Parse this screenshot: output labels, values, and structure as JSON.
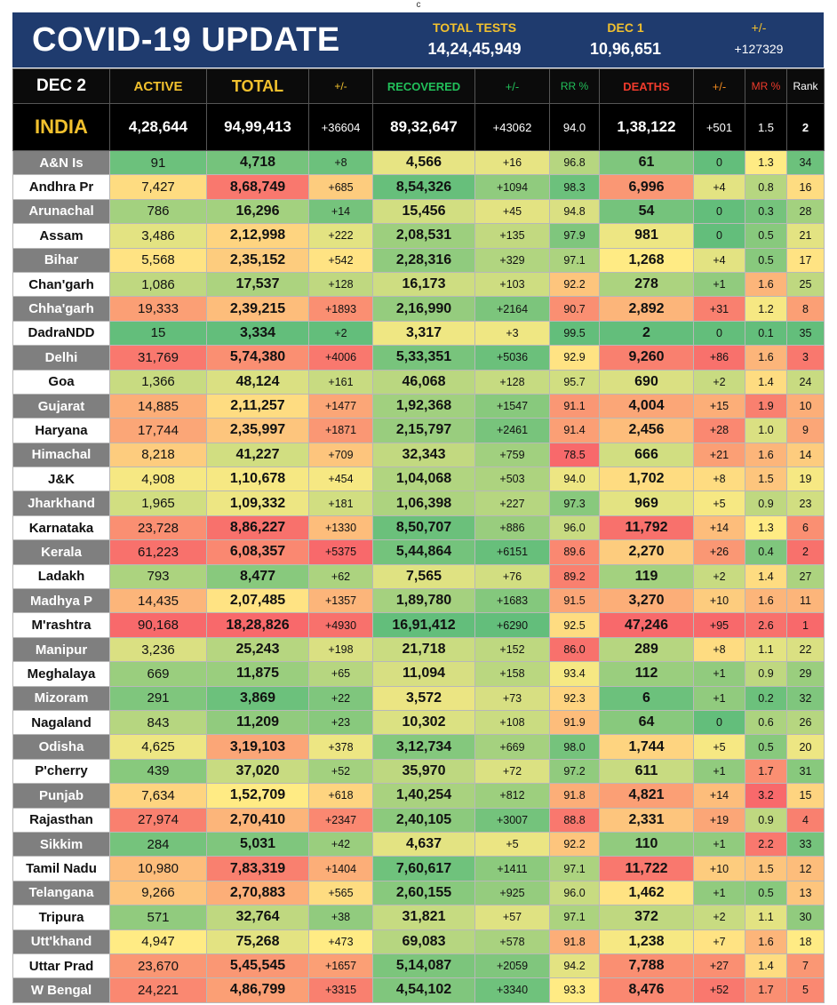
{
  "top_mark": "c",
  "banner": {
    "title": "COVID-19 UPDATE",
    "tests_label": "TOTAL TESTS",
    "tests_value": "14,24,45,949",
    "date_label": "DEC 1",
    "date_value": "10,96,651",
    "delta_label": "+/-",
    "delta_value": "+127329"
  },
  "header": {
    "date": "DEC 2",
    "active": "ACTIVE",
    "total": "TOTAL",
    "total_delta": "+/-",
    "recovered": "RECOVERED",
    "recovered_delta": "+/-",
    "rr": "RR %",
    "deaths": "DEATHS",
    "deaths_delta": "+/-",
    "mr": "MR %",
    "rank": "Rank"
  },
  "india": {
    "name": "INDIA",
    "active": "4,28,644",
    "total": "94,99,413",
    "total_delta": "+36604",
    "recovered": "89,32,647",
    "recovered_delta": "+43062",
    "rr": "94.0",
    "deaths": "1,38,122",
    "deaths_delta": "+501",
    "mr": "1.5",
    "rank": "2"
  },
  "rows": [
    {
      "name": "A&N Is",
      "active": "91",
      "total": "4,718",
      "total_delta": "+8",
      "recovered": "4,566",
      "recovered_delta": "+16",
      "rr": "96.8",
      "deaths": "61",
      "deaths_delta": "0",
      "mr": "1.3",
      "rank": "34"
    },
    {
      "name": "Andhra Pr",
      "active": "7,427",
      "total": "8,68,749",
      "total_delta": "+685",
      "recovered": "8,54,326",
      "recovered_delta": "+1094",
      "rr": "98.3",
      "deaths": "6,996",
      "deaths_delta": "+4",
      "mr": "0.8",
      "rank": "16"
    },
    {
      "name": "Arunachal",
      "active": "786",
      "total": "16,296",
      "total_delta": "+14",
      "recovered": "15,456",
      "recovered_delta": "+45",
      "rr": "94.8",
      "deaths": "54",
      "deaths_delta": "0",
      "mr": "0.3",
      "rank": "28"
    },
    {
      "name": "Assam",
      "active": "3,486",
      "total": "2,12,998",
      "total_delta": "+222",
      "recovered": "2,08,531",
      "recovered_delta": "+135",
      "rr": "97.9",
      "deaths": "981",
      "deaths_delta": "0",
      "mr": "0.5",
      "rank": "21"
    },
    {
      "name": "Bihar",
      "active": "5,568",
      "total": "2,35,152",
      "total_delta": "+542",
      "recovered": "2,28,316",
      "recovered_delta": "+329",
      "rr": "97.1",
      "deaths": "1,268",
      "deaths_delta": "+4",
      "mr": "0.5",
      "rank": "17"
    },
    {
      "name": "Chan'garh",
      "active": "1,086",
      "total": "17,537",
      "total_delta": "+128",
      "recovered": "16,173",
      "recovered_delta": "+103",
      "rr": "92.2",
      "deaths": "278",
      "deaths_delta": "+1",
      "mr": "1.6",
      "rank": "25"
    },
    {
      "name": "Chha'garh",
      "active": "19,333",
      "total": "2,39,215",
      "total_delta": "+1893",
      "recovered": "2,16,990",
      "recovered_delta": "+2164",
      "rr": "90.7",
      "deaths": "2,892",
      "deaths_delta": "+31",
      "mr": "1.2",
      "rank": "8"
    },
    {
      "name": "DadraNDD",
      "active": "15",
      "total": "3,334",
      "total_delta": "+2",
      "recovered": "3,317",
      "recovered_delta": "+3",
      "rr": "99.5",
      "deaths": "2",
      "deaths_delta": "0",
      "mr": "0.1",
      "rank": "35"
    },
    {
      "name": "Delhi",
      "active": "31,769",
      "total": "5,74,380",
      "total_delta": "+4006",
      "recovered": "5,33,351",
      "recovered_delta": "+5036",
      "rr": "92.9",
      "deaths": "9,260",
      "deaths_delta": "+86",
      "mr": "1.6",
      "rank": "3"
    },
    {
      "name": "Goa",
      "active": "1,366",
      "total": "48,124",
      "total_delta": "+161",
      "recovered": "46,068",
      "recovered_delta": "+128",
      "rr": "95.7",
      "deaths": "690",
      "deaths_delta": "+2",
      "mr": "1.4",
      "rank": "24"
    },
    {
      "name": "Gujarat",
      "active": "14,885",
      "total": "2,11,257",
      "total_delta": "+1477",
      "recovered": "1,92,368",
      "recovered_delta": "+1547",
      "rr": "91.1",
      "deaths": "4,004",
      "deaths_delta": "+15",
      "mr": "1.9",
      "rank": "10"
    },
    {
      "name": "Haryana",
      "active": "17,744",
      "total": "2,35,997",
      "total_delta": "+1871",
      "recovered": "2,15,797",
      "recovered_delta": "+2461",
      "rr": "91.4",
      "deaths": "2,456",
      "deaths_delta": "+28",
      "mr": "1.0",
      "rank": "9"
    },
    {
      "name": "Himachal",
      "active": "8,218",
      "total": "41,227",
      "total_delta": "+709",
      "recovered": "32,343",
      "recovered_delta": "+759",
      "rr": "78.5",
      "deaths": "666",
      "deaths_delta": "+21",
      "mr": "1.6",
      "rank": "14"
    },
    {
      "name": "J&K",
      "active": "4,908",
      "total": "1,10,678",
      "total_delta": "+454",
      "recovered": "1,04,068",
      "recovered_delta": "+503",
      "rr": "94.0",
      "deaths": "1,702",
      "deaths_delta": "+8",
      "mr": "1.5",
      "rank": "19"
    },
    {
      "name": "Jharkhand",
      "active": "1,965",
      "total": "1,09,332",
      "total_delta": "+181",
      "recovered": "1,06,398",
      "recovered_delta": "+227",
      "rr": "97.3",
      "deaths": "969",
      "deaths_delta": "+5",
      "mr": "0.9",
      "rank": "23"
    },
    {
      "name": "Karnataka",
      "active": "23,728",
      "total": "8,86,227",
      "total_delta": "+1330",
      "recovered": "8,50,707",
      "recovered_delta": "+886",
      "rr": "96.0",
      "deaths": "11,792",
      "deaths_delta": "+14",
      "mr": "1.3",
      "rank": "6"
    },
    {
      "name": "Kerala",
      "active": "61,223",
      "total": "6,08,357",
      "total_delta": "+5375",
      "recovered": "5,44,864",
      "recovered_delta": "+6151",
      "rr": "89.6",
      "deaths": "2,270",
      "deaths_delta": "+26",
      "mr": "0.4",
      "rank": "2"
    },
    {
      "name": "Ladakh",
      "active": "793",
      "total": "8,477",
      "total_delta": "+62",
      "recovered": "7,565",
      "recovered_delta": "+76",
      "rr": "89.2",
      "deaths": "119",
      "deaths_delta": "+2",
      "mr": "1.4",
      "rank": "27"
    },
    {
      "name": "Madhya P",
      "active": "14,435",
      "total": "2,07,485",
      "total_delta": "+1357",
      "recovered": "1,89,780",
      "recovered_delta": "+1683",
      "rr": "91.5",
      "deaths": "3,270",
      "deaths_delta": "+10",
      "mr": "1.6",
      "rank": "11"
    },
    {
      "name": "M'rashtra",
      "active": "90,168",
      "total": "18,28,826",
      "total_delta": "+4930",
      "recovered": "16,91,412",
      "recovered_delta": "+6290",
      "rr": "92.5",
      "deaths": "47,246",
      "deaths_delta": "+95",
      "mr": "2.6",
      "rank": "1"
    },
    {
      "name": "Manipur",
      "active": "3,236",
      "total": "25,243",
      "total_delta": "+198",
      "recovered": "21,718",
      "recovered_delta": "+152",
      "rr": "86.0",
      "deaths": "289",
      "deaths_delta": "+8",
      "mr": "1.1",
      "rank": "22"
    },
    {
      "name": "Meghalaya",
      "active": "669",
      "total": "11,875",
      "total_delta": "+65",
      "recovered": "11,094",
      "recovered_delta": "+158",
      "rr": "93.4",
      "deaths": "112",
      "deaths_delta": "+1",
      "mr": "0.9",
      "rank": "29"
    },
    {
      "name": "Mizoram",
      "active": "291",
      "total": "3,869",
      "total_delta": "+22",
      "recovered": "3,572",
      "recovered_delta": "+73",
      "rr": "92.3",
      "deaths": "6",
      "deaths_delta": "+1",
      "mr": "0.2",
      "rank": "32"
    },
    {
      "name": "Nagaland",
      "active": "843",
      "total": "11,209",
      "total_delta": "+23",
      "recovered": "10,302",
      "recovered_delta": "+108",
      "rr": "91.9",
      "deaths": "64",
      "deaths_delta": "0",
      "mr": "0.6",
      "rank": "26"
    },
    {
      "name": "Odisha",
      "active": "4,625",
      "total": "3,19,103",
      "total_delta": "+378",
      "recovered": "3,12,734",
      "recovered_delta": "+669",
      "rr": "98.0",
      "deaths": "1,744",
      "deaths_delta": "+5",
      "mr": "0.5",
      "rank": "20"
    },
    {
      "name": "P'cherry",
      "active": "439",
      "total": "37,020",
      "total_delta": "+52",
      "recovered": "35,970",
      "recovered_delta": "+72",
      "rr": "97.2",
      "deaths": "611",
      "deaths_delta": "+1",
      "mr": "1.7",
      "rank": "31"
    },
    {
      "name": "Punjab",
      "active": "7,634",
      "total": "1,52,709",
      "total_delta": "+618",
      "recovered": "1,40,254",
      "recovered_delta": "+812",
      "rr": "91.8",
      "deaths": "4,821",
      "deaths_delta": "+14",
      "mr": "3.2",
      "rank": "15"
    },
    {
      "name": "Rajasthan",
      "active": "27,974",
      "total": "2,70,410",
      "total_delta": "+2347",
      "recovered": "2,40,105",
      "recovered_delta": "+3007",
      "rr": "88.8",
      "deaths": "2,331",
      "deaths_delta": "+19",
      "mr": "0.9",
      "rank": "4"
    },
    {
      "name": "Sikkim",
      "active": "284",
      "total": "5,031",
      "total_delta": "+42",
      "recovered": "4,637",
      "recovered_delta": "+5",
      "rr": "92.2",
      "deaths": "110",
      "deaths_delta": "+1",
      "mr": "2.2",
      "rank": "33"
    },
    {
      "name": "Tamil Nadu",
      "active": "10,980",
      "total": "7,83,319",
      "total_delta": "+1404",
      "recovered": "7,60,617",
      "recovered_delta": "+1411",
      "rr": "97.1",
      "deaths": "11,722",
      "deaths_delta": "+10",
      "mr": "1.5",
      "rank": "12"
    },
    {
      "name": "Telangana",
      "active": "9,266",
      "total": "2,70,883",
      "total_delta": "+565",
      "recovered": "2,60,155",
      "recovered_delta": "+925",
      "rr": "96.0",
      "deaths": "1,462",
      "deaths_delta": "+1",
      "mr": "0.5",
      "rank": "13"
    },
    {
      "name": "Tripura",
      "active": "571",
      "total": "32,764",
      "total_delta": "+38",
      "recovered": "31,821",
      "recovered_delta": "+57",
      "rr": "97.1",
      "deaths": "372",
      "deaths_delta": "+2",
      "mr": "1.1",
      "rank": "30"
    },
    {
      "name": "Utt'khand",
      "active": "4,947",
      "total": "75,268",
      "total_delta": "+473",
      "recovered": "69,083",
      "recovered_delta": "+578",
      "rr": "91.8",
      "deaths": "1,238",
      "deaths_delta": "+7",
      "mr": "1.6",
      "rank": "18"
    },
    {
      "name": "Uttar Prad",
      "active": "23,670",
      "total": "5,45,545",
      "total_delta": "+1657",
      "recovered": "5,14,087",
      "recovered_delta": "+2059",
      "rr": "94.2",
      "deaths": "7,788",
      "deaths_delta": "+27",
      "mr": "1.4",
      "rank": "7"
    },
    {
      "name": "W Bengal",
      "active": "24,221",
      "total": "4,86,799",
      "total_delta": "+3315",
      "recovered": "4,54,102",
      "recovered_delta": "+3340",
      "rr": "93.3",
      "deaths": "8,476",
      "deaths_delta": "+52",
      "mr": "1.7",
      "rank": "5"
    }
  ]
}
